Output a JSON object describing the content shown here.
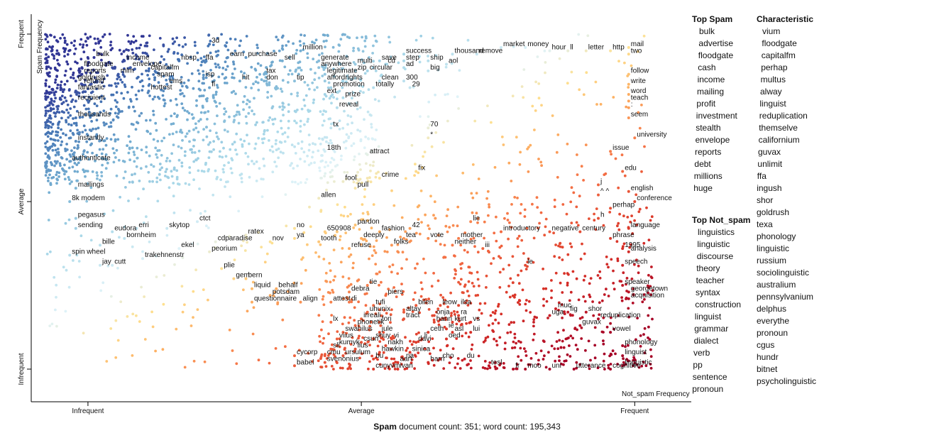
{
  "chart_data": {
    "type": "scatter",
    "xlabel": "Not_spam Frequency",
    "ylabel": "Spam Frequency",
    "x_ticks": [
      "Infrequent",
      "Average",
      "Frequent"
    ],
    "y_ticks": [
      "Frequent",
      "Average",
      "Infrequent"
    ],
    "xlim": [
      0,
      1
    ],
    "ylim": [
      0,
      1
    ],
    "terms": [
      {
        "t": "bulk",
        "x": 0.08,
        "y": 0.93
      },
      {
        "t": "income",
        "x": 0.13,
        "y": 0.92
      },
      {
        "t": "envelope",
        "x": 0.14,
        "y": 0.9
      },
      {
        "t": "floodgate",
        "x": 0.06,
        "y": 0.9
      },
      {
        "t": "mlm",
        "x": 0.12,
        "y": 0.88
      },
      {
        "t": "reports",
        "x": 0.06,
        "y": 0.88
      },
      {
        "t": "goldrush",
        "x": 0.05,
        "y": 0.86
      },
      {
        "t": "refund",
        "x": 0.06,
        "y": 0.85
      },
      {
        "t": "fantastic",
        "x": 0.05,
        "y": 0.83
      },
      {
        "t": "recipient",
        "x": 0.05,
        "y": 0.8
      },
      {
        "t": "thousands",
        "x": 0.05,
        "y": 0.75
      },
      {
        "t": "instantly",
        "x": 0.05,
        "y": 0.68
      },
      {
        "t": "authenticate",
        "x": 0.04,
        "y": 0.62
      },
      {
        "t": "mailings",
        "x": 0.05,
        "y": 0.54
      },
      {
        "t": "8k modem",
        "x": 0.04,
        "y": 0.5
      },
      {
        "t": "pegasus",
        "x": 0.05,
        "y": 0.45
      },
      {
        "t": "sending",
        "x": 0.05,
        "y": 0.42
      },
      {
        "t": "eudora",
        "x": 0.11,
        "y": 0.41
      },
      {
        "t": "erri",
        "x": 0.15,
        "y": 0.42
      },
      {
        "t": "skytop",
        "x": 0.2,
        "y": 0.42
      },
      {
        "t": "ctct",
        "x": 0.25,
        "y": 0.44
      },
      {
        "t": "bornheim",
        "x": 0.13,
        "y": 0.39
      },
      {
        "t": "bille",
        "x": 0.09,
        "y": 0.37
      },
      {
        "t": "spin wheel",
        "x": 0.04,
        "y": 0.34
      },
      {
        "t": "ekel",
        "x": 0.22,
        "y": 0.36
      },
      {
        "t": "peorium",
        "x": 0.27,
        "y": 0.35
      },
      {
        "t": "trakehnenstr",
        "x": 0.16,
        "y": 0.33
      },
      {
        "t": "jay",
        "x": 0.09,
        "y": 0.31
      },
      {
        "t": "cutt",
        "x": 0.11,
        "y": 0.31
      },
      {
        "t": "cdparadise",
        "x": 0.28,
        "y": 0.38
      },
      {
        "t": "ratex",
        "x": 0.33,
        "y": 0.4
      },
      {
        "t": "nov",
        "x": 0.37,
        "y": 0.38
      },
      {
        "t": "plie",
        "x": 0.29,
        "y": 0.3
      },
      {
        "t": "gem",
        "x": 0.31,
        "y": 0.27
      },
      {
        "t": "bern",
        "x": 0.33,
        "y": 0.27
      },
      {
        "t": "liquid",
        "x": 0.34,
        "y": 0.24
      },
      {
        "t": "behalf",
        "x": 0.38,
        "y": 0.24
      },
      {
        "t": "potsdam",
        "x": 0.37,
        "y": 0.22
      },
      {
        "t": "questionnaire",
        "x": 0.34,
        "y": 0.2
      },
      {
        "t": "align",
        "x": 0.42,
        "y": 0.2
      },
      {
        "t": "no",
        "x": 0.41,
        "y": 0.42
      },
      {
        "t": "ya",
        "x": 0.41,
        "y": 0.39
      },
      {
        "t": "tooth",
        "x": 0.45,
        "y": 0.38
      },
      {
        "t": "650",
        "x": 0.46,
        "y": 0.41
      },
      {
        "t": "908",
        "x": 0.48,
        "y": 0.41
      },
      {
        "t": "pardon",
        "x": 0.51,
        "y": 0.43
      },
      {
        "t": "fashion",
        "x": 0.55,
        "y": 0.41
      },
      {
        "t": "deeply",
        "x": 0.52,
        "y": 0.39
      },
      {
        "t": "refuse",
        "x": 0.5,
        "y": 0.36
      },
      {
        "t": "42",
        "x": 0.6,
        "y": 0.42
      },
      {
        "t": "tea",
        "x": 0.59,
        "y": 0.39
      },
      {
        "t": "vote",
        "x": 0.63,
        "y": 0.39
      },
      {
        "t": "folks",
        "x": 0.57,
        "y": 0.37
      },
      {
        "t": "mother",
        "x": 0.68,
        "y": 0.39
      },
      {
        "t": "neither",
        "x": 0.67,
        "y": 0.37
      },
      {
        "t": "lie",
        "x": 0.7,
        "y": 0.44
      },
      {
        "t": "introductory",
        "x": 0.75,
        "y": 0.41
      },
      {
        "t": "iii",
        "x": 0.72,
        "y": 0.36
      },
      {
        "t": "le",
        "x": 0.79,
        "y": 0.31
      },
      {
        "t": "negative",
        "x": 0.83,
        "y": 0.41
      },
      {
        "t": "century",
        "x": 0.88,
        "y": 0.41
      },
      {
        "t": "attest",
        "x": 0.47,
        "y": 0.2
      },
      {
        "t": "debra",
        "x": 0.5,
        "y": 0.23
      },
      {
        "t": "di",
        "x": 0.5,
        "y": 0.2
      },
      {
        "t": "tie",
        "x": 0.53,
        "y": 0.25
      },
      {
        "t": "piers",
        "x": 0.56,
        "y": 0.22
      },
      {
        "t": "tufi",
        "x": 0.54,
        "y": 0.19
      },
      {
        "t": "uhunix",
        "x": 0.53,
        "y": 0.17
      },
      {
        "t": "irreali",
        "x": 0.52,
        "y": 0.15
      },
      {
        "t": "phonetik",
        "x": 0.51,
        "y": 0.13
      },
      {
        "t": "lx",
        "x": 0.47,
        "y": 0.14
      },
      {
        "t": "swahilus",
        "x": 0.49,
        "y": 0.11
      },
      {
        "t": "viius",
        "x": 0.48,
        "y": 0.09
      },
      {
        "t": "csun",
        "x": 0.52,
        "y": 0.08
      },
      {
        "t": "kumyk",
        "x": 0.48,
        "y": 0.07
      },
      {
        "t": "sli",
        "x": 0.47,
        "y": 0.06
      },
      {
        "t": "iius",
        "x": 0.51,
        "y": 0.06
      },
      {
        "t": "cycorp",
        "x": 0.41,
        "y": 0.04
      },
      {
        "t": "cmu",
        "x": 0.46,
        "y": 0.04
      },
      {
        "t": "ursulum",
        "x": 0.49,
        "y": 0.04
      },
      {
        "t": "babel",
        "x": 0.41,
        "y": 0.01
      },
      {
        "t": "svenonius",
        "x": 0.46,
        "y": 0.02
      },
      {
        "t": "bu",
        "x": 0.54,
        "y": 0.03
      },
      {
        "t": "cunyvm",
        "x": 0.54,
        "y": 0.0
      },
      {
        "t": "hawkin",
        "x": 0.55,
        "y": 0.05
      },
      {
        "t": "nakh",
        "x": 0.56,
        "y": 0.07
      },
      {
        "t": "shuy",
        "x": 0.54,
        "y": 0.09
      },
      {
        "t": "vi",
        "x": 0.57,
        "y": 0.09
      },
      {
        "t": "jule",
        "x": 0.55,
        "y": 0.11
      },
      {
        "t": "fori",
        "x": 0.55,
        "y": 0.14
      },
      {
        "t": "tract",
        "x": 0.59,
        "y": 0.15
      },
      {
        "t": "altay",
        "x": 0.59,
        "y": 0.17
      },
      {
        "t": "bilen",
        "x": 0.61,
        "y": 0.19
      },
      {
        "t": "onja",
        "x": 0.64,
        "y": 0.16
      },
      {
        "t": "leow",
        "x": 0.65,
        "y": 0.19
      },
      {
        "t": "hann",
        "x": 0.64,
        "y": 0.14
      },
      {
        "t": "ilsa",
        "x": 0.68,
        "y": 0.19
      },
      {
        "t": "ra",
        "x": 0.68,
        "y": 0.16
      },
      {
        "t": "kurt",
        "x": 0.67,
        "y": 0.14
      },
      {
        "t": "vs",
        "x": 0.7,
        "y": 0.14
      },
      {
        "t": "ie",
        "x": 0.66,
        "y": 0.12
      },
      {
        "t": "ceth",
        "x": 0.63,
        "y": 0.11
      },
      {
        "t": "asl",
        "x": 0.67,
        "y": 0.11
      },
      {
        "t": "lui",
        "x": 0.7,
        "y": 0.11
      },
      {
        "t": "li",
        "x": 0.62,
        "y": 0.09
      },
      {
        "t": "davi",
        "x": 0.61,
        "y": 0.08
      },
      {
        "t": "oed",
        "x": 0.66,
        "y": 0.09
      },
      {
        "t": "sinica",
        "x": 0.6,
        "y": 0.05
      },
      {
        "t": "na",
        "x": 0.59,
        "y": 0.03
      },
      {
        "t": "aart",
        "x": 0.58,
        "y": 0.02
      },
      {
        "t": "ivan",
        "x": 0.58,
        "y": 0.0
      },
      {
        "t": "cho",
        "x": 0.65,
        "y": 0.03
      },
      {
        "t": "harri",
        "x": 0.63,
        "y": 0.02
      },
      {
        "t": "du",
        "x": 0.69,
        "y": 0.03
      },
      {
        "t": "tesl",
        "x": 0.73,
        "y": 0.01
      },
      {
        "t": "fr",
        "x": 0.77,
        "y": 0.0
      },
      {
        "t": "moo",
        "x": 0.79,
        "y": 0.0
      },
      {
        "t": "uni",
        "x": 0.83,
        "y": 0.0
      },
      {
        "t": "utterance",
        "x": 0.87,
        "y": 0.0
      },
      {
        "t": "cognitive",
        "x": 0.93,
        "y": 0.0
      },
      {
        "t": "muc",
        "x": 0.84,
        "y": 0.18
      },
      {
        "t": "fig",
        "x": 0.86,
        "y": 0.17
      },
      {
        "t": "uga",
        "x": 0.83,
        "y": 0.16
      },
      {
        "t": "shor",
        "x": 0.89,
        "y": 0.17
      },
      {
        "t": "guvax",
        "x": 0.88,
        "y": 0.13
      },
      {
        "t": "reduplication",
        "x": 0.91,
        "y": 0.15
      },
      {
        "t": "vowel",
        "x": 0.93,
        "y": 0.11
      },
      {
        "t": "phonology",
        "x": 0.95,
        "y": 0.07
      },
      {
        "t": "linguist",
        "x": 0.95,
        "y": 0.04
      },
      {
        "t": "linguistic",
        "x": 0.95,
        "y": 0.01
      },
      {
        "t": "speaker",
        "x": 0.95,
        "y": 0.25
      },
      {
        "t": "georgetown",
        "x": 0.96,
        "y": 0.23
      },
      {
        "t": "acquisition",
        "x": 0.96,
        "y": 0.21
      },
      {
        "t": "speech",
        "x": 0.95,
        "y": 0.31
      },
      {
        "t": "1995",
        "x": 0.95,
        "y": 0.36
      },
      {
        "t": "analysis",
        "x": 0.96,
        "y": 0.35
      },
      {
        "t": "phrase",
        "x": 0.93,
        "y": 0.39
      },
      {
        "t": "language",
        "x": 0.96,
        "y": 0.42
      },
      {
        "t": "h",
        "x": 0.91,
        "y": 0.45
      },
      {
        "t": "perhap",
        "x": 0.93,
        "y": 0.48
      },
      {
        "t": "conference",
        "x": 0.97,
        "y": 0.5
      },
      {
        "t": "english",
        "x": 0.96,
        "y": 0.53
      },
      {
        "t": "^ ^",
        "x": 0.91,
        "y": 0.52
      },
      {
        "t": "j",
        "x": 0.91,
        "y": 0.55
      },
      {
        "t": "edu",
        "x": 0.95,
        "y": 0.59
      },
      {
        "t": "issue",
        "x": 0.93,
        "y": 0.65
      },
      {
        "t": "university",
        "x": 0.97,
        "y": 0.69
      },
      {
        "t": "seem",
        "x": 0.96,
        "y": 0.75
      },
      {
        "t": ":",
        "x": 0.96,
        "y": 0.78
      },
      {
        "t": "teach",
        "x": 0.96,
        "y": 0.8
      },
      {
        "t": "word",
        "x": 0.96,
        "y": 0.82
      },
      {
        "t": "write",
        "x": 0.96,
        "y": 0.85
      },
      {
        "t": "follow",
        "x": 0.96,
        "y": 0.88
      },
      {
        "t": "two",
        "x": 0.96,
        "y": 0.94
      },
      {
        "t": "mail",
        "x": 0.96,
        "y": 0.96
      },
      {
        "t": "http",
        "x": 0.93,
        "y": 0.95
      },
      {
        "t": "letter",
        "x": 0.89,
        "y": 0.95
      },
      {
        "t": "ll",
        "x": 0.86,
        "y": 0.95
      },
      {
        "t": "hour",
        "x": 0.83,
        "y": 0.95
      },
      {
        "t": "money",
        "x": 0.79,
        "y": 0.96
      },
      {
        "t": "market",
        "x": 0.75,
        "y": 0.96
      },
      {
        "t": "remove",
        "x": 0.71,
        "y": 0.94
      },
      {
        "t": "thousand",
        "x": 0.67,
        "y": 0.94
      },
      {
        "t": "aol",
        "x": 0.66,
        "y": 0.91
      },
      {
        "t": "ship",
        "x": 0.63,
        "y": 0.92
      },
      {
        "t": "big",
        "x": 0.63,
        "y": 0.89
      },
      {
        "t": "success",
        "x": 0.59,
        "y": 0.94
      },
      {
        "t": "step",
        "x": 0.59,
        "y": 0.92
      },
      {
        "t": "save",
        "x": 0.55,
        "y": 0.92
      },
      {
        "t": "ad",
        "x": 0.59,
        "y": 0.9
      },
      {
        "t": "cd",
        "x": 0.56,
        "y": 0.91
      },
      {
        "t": "circular",
        "x": 0.53,
        "y": 0.89
      },
      {
        "t": "300",
        "x": 0.59,
        "y": 0.86
      },
      {
        "t": "clean",
        "x": 0.55,
        "y": 0.86
      },
      {
        "t": "29",
        "x": 0.6,
        "y": 0.84
      },
      {
        "t": "totally",
        "x": 0.54,
        "y": 0.84
      },
      {
        "t": "multi",
        "x": 0.51,
        "y": 0.91
      },
      {
        "t": "zip",
        "x": 0.51,
        "y": 0.89
      },
      {
        "t": "generate",
        "x": 0.45,
        "y": 0.92
      },
      {
        "t": "anywhere",
        "x": 0.45,
        "y": 0.9
      },
      {
        "t": "legitimate",
        "x": 0.46,
        "y": 0.88
      },
      {
        "t": "afford",
        "x": 0.46,
        "y": 0.86
      },
      {
        "t": "rights",
        "x": 0.49,
        "y": 0.86
      },
      {
        "t": "promotion",
        "x": 0.47,
        "y": 0.84
      },
      {
        "t": "ext",
        "x": 0.46,
        "y": 0.82
      },
      {
        "t": "prize",
        "x": 0.49,
        "y": 0.81
      },
      {
        "t": "reveal",
        "x": 0.48,
        "y": 0.78
      },
      {
        "t": "million",
        "x": 0.42,
        "y": 0.95
      },
      {
        "t": "sell",
        "x": 0.39,
        "y": 0.92
      },
      {
        "t": "tip",
        "x": 0.41,
        "y": 0.86
      },
      {
        "t": "purchase",
        "x": 0.33,
        "y": 0.93
      },
      {
        "t": "tax",
        "x": 0.36,
        "y": 0.88
      },
      {
        "t": "don",
        "x": 0.36,
        "y": 0.86
      },
      {
        "t": "hit",
        "x": 0.32,
        "y": 0.86
      },
      {
        "t": "earn",
        "x": 0.3,
        "y": 0.93
      },
      {
        "t": "3d",
        "x": 0.27,
        "y": 0.97
      },
      {
        "t": "ffa",
        "x": 0.26,
        "y": 0.92
      },
      {
        "t": "isp",
        "x": 0.26,
        "y": 0.87
      },
      {
        "t": "fl",
        "x": 0.27,
        "y": 0.84
      },
      {
        "t": "nbsp",
        "x": 0.22,
        "y": 0.92
      },
      {
        "t": "capitalfm",
        "x": 0.17,
        "y": 0.89
      },
      {
        "t": "spam",
        "x": 0.18,
        "y": 0.87
      },
      {
        "t": "ems",
        "x": 0.2,
        "y": 0.85
      },
      {
        "t": "hottest",
        "x": 0.17,
        "y": 0.83
      },
      {
        "t": "70",
        "x": 0.63,
        "y": 0.72
      },
      {
        "t": "*",
        "x": 0.63,
        "y": 0.69
      },
      {
        "t": "tx",
        "x": 0.47,
        "y": 0.72
      },
      {
        "t": "18th",
        "x": 0.46,
        "y": 0.65
      },
      {
        "t": "attract",
        "x": 0.53,
        "y": 0.64
      },
      {
        "t": "fix",
        "x": 0.61,
        "y": 0.59
      },
      {
        "t": "crime",
        "x": 0.55,
        "y": 0.57
      },
      {
        "t": "fool",
        "x": 0.49,
        "y": 0.56
      },
      {
        "t": "pull",
        "x": 0.51,
        "y": 0.54
      },
      {
        "t": "allen",
        "x": 0.45,
        "y": 0.51
      }
    ]
  },
  "side": {
    "top_spam_title": "Top Spam",
    "top_spam": [
      "bulk",
      "advertise",
      "floodgate",
      "cash",
      "income",
      "mailing",
      "profit",
      "investment",
      "stealth",
      "envelope",
      "reports",
      "debt",
      "millions",
      "huge"
    ],
    "top_not_spam_title": "Top Not_spam",
    "top_not_spam": [
      "linguistics",
      "linguistic",
      "discourse",
      "theory",
      "teacher",
      "syntax",
      "construction",
      "linguist",
      "grammar",
      "dialect",
      "verb",
      "pp",
      "sentence",
      "pronoun"
    ],
    "characteristic_title": "Characteristic",
    "characteristic": [
      "vium",
      "floodgate",
      "capitalfm",
      "perhap",
      "multus",
      "alway",
      "linguist",
      "reduplication",
      "themselve",
      "californium",
      "guvax",
      "unlimit",
      "ffa",
      "ingush",
      "shor",
      "goldrush",
      "texa",
      "phonology",
      "linguistic",
      "russium",
      "sociolinguistic",
      "australium",
      "pennsylvanium",
      "delphus",
      "everythe",
      "pronoun",
      "cgus",
      "hundr",
      "bitnet",
      "psycholinguistic"
    ]
  },
  "footer": {
    "bold": "Spam",
    "rest": " document count: 351; word count: 195,343"
  }
}
